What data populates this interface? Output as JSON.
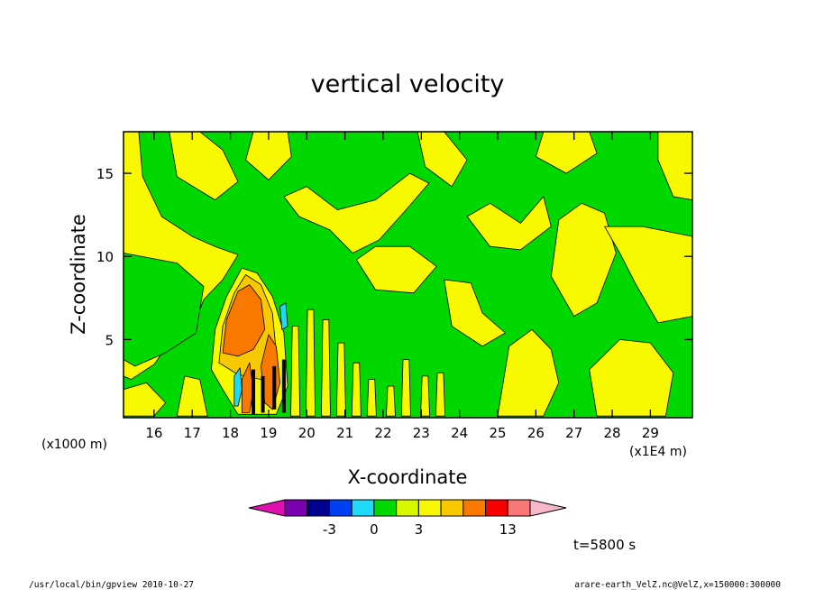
{
  "chart_data": {
    "type": "heatmap",
    "title": "vertical velocity",
    "xlabel": "X-coordinate",
    "ylabel": "Z-coordinate",
    "x_unit": "(x1E4 m)",
    "y_unit": "(x1000 m)",
    "xlim": [
      15.2,
      30.1
    ],
    "ylim": [
      0.3,
      17.5
    ],
    "x_ticks": [
      "16",
      "17",
      "18",
      "19",
      "20",
      "21",
      "22",
      "23",
      "24",
      "25",
      "26",
      "27",
      "28",
      "29"
    ],
    "x_tick_values": [
      16,
      17,
      18,
      19,
      20,
      21,
      22,
      23,
      24,
      25,
      26,
      27,
      28,
      29
    ],
    "y_ticks": [
      "5",
      "10",
      "15"
    ],
    "y_tick_values": [
      5,
      10,
      15
    ],
    "time_label": "t=5800 s",
    "colorbar": {
      "colors": [
        "#e010b0",
        "#7a00b0",
        "#000090",
        "#0040f0",
        "#20d8f8",
        "#00d800",
        "#d8f800",
        "#f8f800",
        "#f8c800",
        "#f87800",
        "#f80000",
        "#f87878",
        "#f8b8c8"
      ],
      "tick_labels": [
        "-3",
        "0",
        "3",
        "13"
      ],
      "tick_boundaries": [
        3,
        5,
        7,
        11
      ]
    },
    "regions": [
      {
        "name": "yellow-band-left",
        "level": "positive-small"
      },
      {
        "name": "updraft-core",
        "level": "positive-large"
      },
      {
        "name": "downdraft-cells",
        "level": "negative"
      }
    ]
  },
  "footer": {
    "left": "/usr/local/bin/gpview  2010-10-27",
    "right": "arare-earth_VelZ.nc@VelZ,x=150000:300000"
  }
}
